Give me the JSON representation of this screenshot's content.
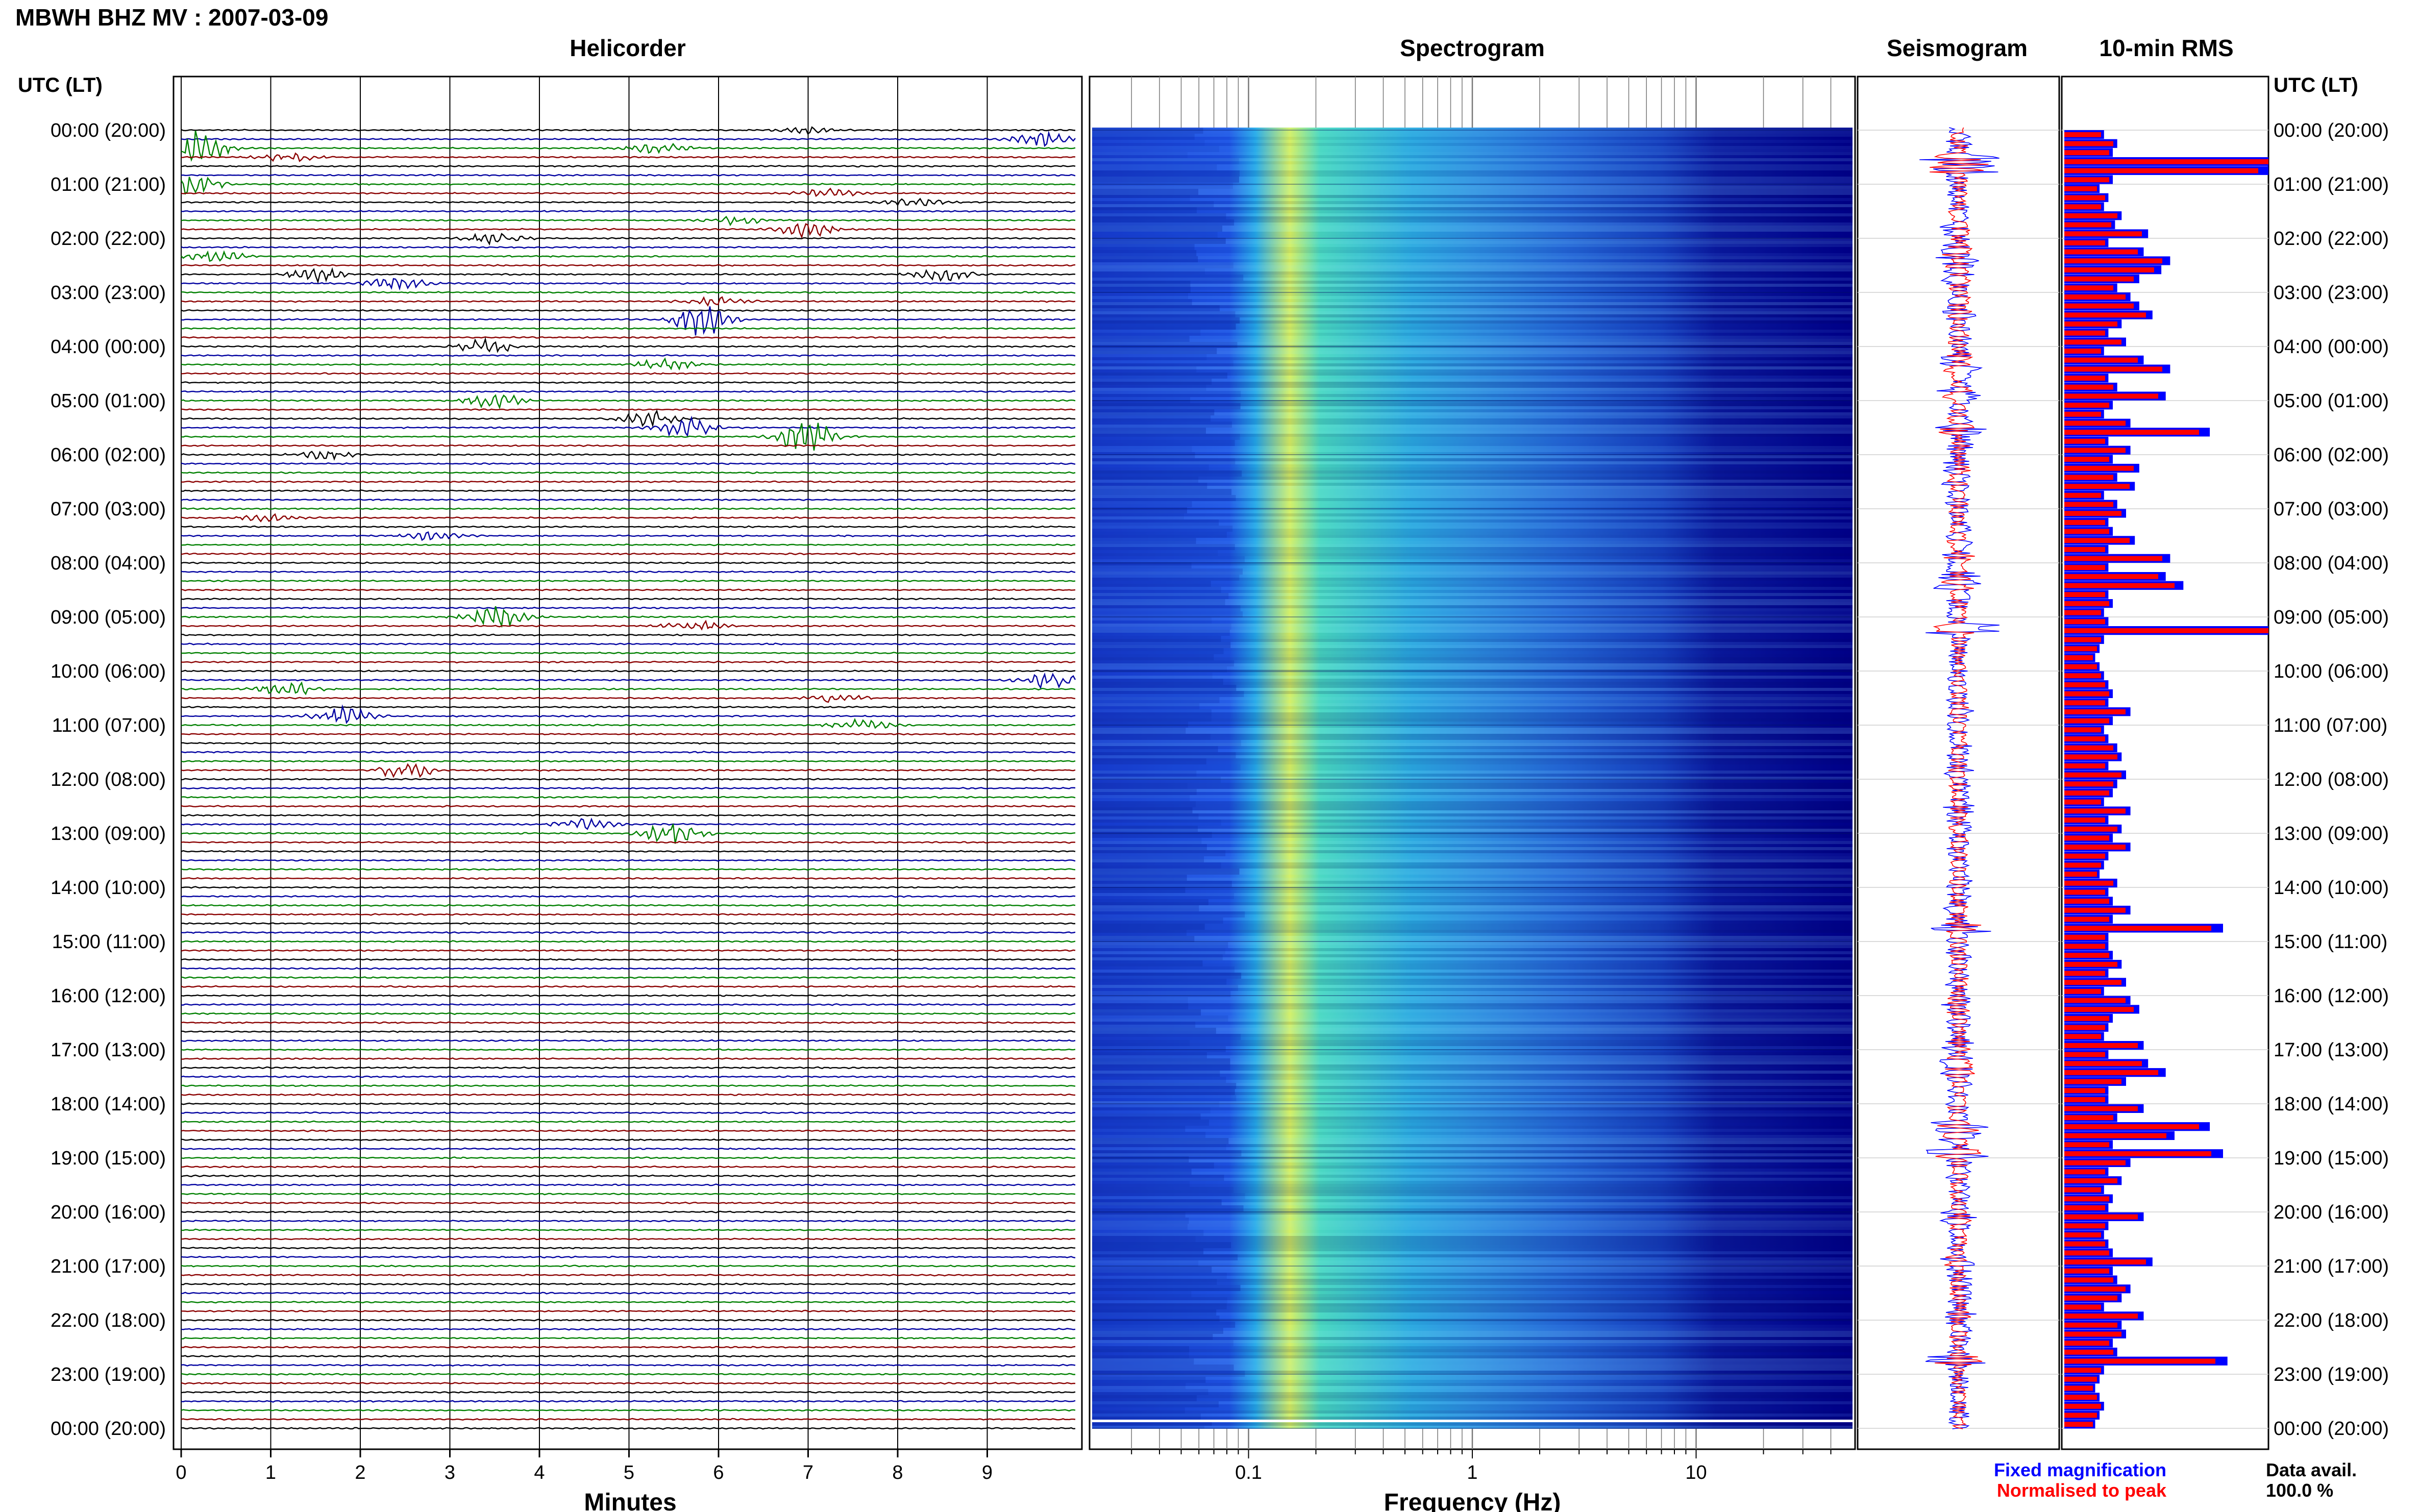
{
  "header": {
    "title": "MBWH BHZ MV : 2007-03-09"
  },
  "panels": {
    "helicorder": "Helicorder",
    "spectrogram": "Spectrogram",
    "seismogram": "Seismogram",
    "rms": "10-min RMS"
  },
  "axis": {
    "time_label": "UTC (LT)",
    "helicorder_xlabel": "Minutes",
    "spectrogram_xlabel": "Frequency (Hz)"
  },
  "legend": {
    "fixed": "Fixed magnification",
    "normalised": "Normalised to peak",
    "data_avail_label": "Data avail.",
    "data_avail_value": "100.0 %"
  },
  "colors": {
    "trace_cycle": [
      "#000000",
      "#0000a0",
      "#008000",
      "#8b0000"
    ],
    "fixed": "#0000ff",
    "normalised": "#ff0000",
    "spectro_low": "#00007f",
    "spectro_high": "#ffff55"
  },
  "chart_data": [
    {
      "type": "line",
      "name": "helicorder",
      "title": "Helicorder",
      "xlabel": "Minutes",
      "xlim": [
        0,
        10
      ],
      "xticks": [
        "0",
        "1",
        "2",
        "3",
        "4",
        "5",
        "6",
        "7",
        "8",
        "9"
      ],
      "time_ticks": [
        "00:00 (20:00)",
        "01:00 (21:00)",
        "02:00 (22:00)",
        "03:00 (23:00)",
        "04:00 (00:00)",
        "05:00 (01:00)",
        "06:00 (02:00)",
        "07:00 (03:00)",
        "08:00 (04:00)",
        "09:00 (05:00)",
        "10:00 (06:00)",
        "11:00 (07:00)",
        "12:00 (08:00)",
        "13:00 (09:00)",
        "14:00 (10:00)",
        "15:00 (11:00)",
        "16:00 (12:00)",
        "17:00 (13:00)",
        "18:00 (14:00)",
        "19:00 (15:00)",
        "20:00 (16:00)",
        "21:00 (17:00)",
        "22:00 (18:00)",
        "23:00 (19:00)",
        "00:00 (20:00)"
      ],
      "traces_per_hour": 6,
      "events": [
        {
          "row": 0,
          "minute": 7.0,
          "amp": 0.25
        },
        {
          "row": 1,
          "minute": 9.6,
          "amp": 0.5
        },
        {
          "row": 2,
          "minute": 0.15,
          "amp": 1.6
        },
        {
          "row": 2,
          "minute": 5.3,
          "amp": 0.4
        },
        {
          "row": 3,
          "minute": 1.2,
          "amp": 0.3
        },
        {
          "row": 6,
          "minute": 0.1,
          "amp": 0.8
        },
        {
          "row": 7,
          "minute": 7.2,
          "amp": 0.35
        },
        {
          "row": 8,
          "minute": 8.2,
          "amp": 0.3
        },
        {
          "row": 10,
          "minute": 6.2,
          "amp": 0.3
        },
        {
          "row": 11,
          "minute": 7.0,
          "amp": 0.6
        },
        {
          "row": 12,
          "minute": 3.5,
          "amp": 0.4
        },
        {
          "row": 14,
          "minute": 0.4,
          "amp": 0.4
        },
        {
          "row": 16,
          "minute": 1.5,
          "amp": 0.5
        },
        {
          "row": 16,
          "minute": 8.5,
          "amp": 0.5
        },
        {
          "row": 17,
          "minute": 2.4,
          "amp": 0.5
        },
        {
          "row": 19,
          "minute": 6.0,
          "amp": 0.35
        },
        {
          "row": 21,
          "minute": 5.8,
          "amp": 1.3
        },
        {
          "row": 24,
          "minute": 3.4,
          "amp": 0.6
        },
        {
          "row": 26,
          "minute": 5.4,
          "amp": 0.5
        },
        {
          "row": 30,
          "minute": 3.5,
          "amp": 0.6
        },
        {
          "row": 32,
          "minute": 5.2,
          "amp": 0.6
        },
        {
          "row": 33,
          "minute": 5.6,
          "amp": 0.8
        },
        {
          "row": 34,
          "minute": 7.0,
          "amp": 1.4
        },
        {
          "row": 36,
          "minute": 1.6,
          "amp": 0.3
        },
        {
          "row": 43,
          "minute": 1.0,
          "amp": 0.3
        },
        {
          "row": 45,
          "minute": 2.8,
          "amp": 0.3
        },
        {
          "row": 54,
          "minute": 3.5,
          "amp": 0.8
        },
        {
          "row": 55,
          "minute": 5.7,
          "amp": 0.4
        },
        {
          "row": 61,
          "minute": 9.7,
          "amp": 0.6
        },
        {
          "row": 62,
          "minute": 1.2,
          "amp": 0.5
        },
        {
          "row": 63,
          "minute": 7.3,
          "amp": 0.4
        },
        {
          "row": 65,
          "minute": 1.8,
          "amp": 0.7
        },
        {
          "row": 66,
          "minute": 7.6,
          "amp": 0.4
        },
        {
          "row": 71,
          "minute": 2.5,
          "amp": 0.7
        },
        {
          "row": 77,
          "minute": 4.5,
          "amp": 0.4
        },
        {
          "row": 78,
          "minute": 5.5,
          "amp": 0.9
        }
      ]
    },
    {
      "type": "heatmap",
      "name": "spectrogram",
      "title": "Spectrogram",
      "xlabel": "Frequency (Hz)",
      "xscale": "log",
      "xlim": [
        0.02,
        50
      ],
      "xticks": [
        "0.1",
        "1",
        "10"
      ],
      "peak_band_hz": [
        0.15,
        0.35
      ],
      "secondary_band_hz": [
        1.5,
        3
      ]
    },
    {
      "type": "line",
      "name": "seismogram",
      "title": "Seismogram",
      "series": [
        {
          "name": "Fixed magnification",
          "color": "#0000ff"
        },
        {
          "name": "Normalised to peak",
          "color": "#ff0000"
        }
      ]
    },
    {
      "type": "bar",
      "name": "rms",
      "title": "10-min RMS",
      "orientation": "horizontal",
      "series_names": [
        "Fixed magnification",
        "Normalised to peak"
      ],
      "values": [
        0.18,
        0.24,
        0.22,
        1.0,
        0.95,
        0.22,
        0.16,
        0.2,
        0.18,
        0.26,
        0.23,
        0.38,
        0.2,
        0.36,
        0.48,
        0.44,
        0.34,
        0.24,
        0.3,
        0.34,
        0.4,
        0.26,
        0.2,
        0.28,
        0.18,
        0.36,
        0.48,
        0.2,
        0.24,
        0.46,
        0.22,
        0.18,
        0.3,
        0.66,
        0.2,
        0.3,
        0.22,
        0.34,
        0.24,
        0.32,
        0.18,
        0.24,
        0.28,
        0.2,
        0.22,
        0.32,
        0.2,
        0.48,
        0.2,
        0.46,
        0.54,
        0.2,
        0.22,
        0.18,
        0.2,
        1.0,
        0.18,
        0.16,
        0.14,
        0.16,
        0.18,
        0.2,
        0.22,
        0.2,
        0.3,
        0.22,
        0.18,
        0.2,
        0.24,
        0.26,
        0.2,
        0.28,
        0.24,
        0.22,
        0.18,
        0.3,
        0.2,
        0.26,
        0.22,
        0.3,
        0.2,
        0.18,
        0.16,
        0.24,
        0.2,
        0.22,
        0.3,
        0.22,
        0.72,
        0.2,
        0.2,
        0.22,
        0.26,
        0.2,
        0.28,
        0.18,
        0.3,
        0.34,
        0.22,
        0.2,
        0.18,
        0.36,
        0.2,
        0.38,
        0.46,
        0.28,
        0.2,
        0.2,
        0.36,
        0.24,
        0.66,
        0.5,
        0.22,
        0.72,
        0.3,
        0.2,
        0.26,
        0.18,
        0.22,
        0.2,
        0.36,
        0.2,
        0.18,
        0.2,
        0.22,
        0.4,
        0.22,
        0.24,
        0.3,
        0.26,
        0.18,
        0.36,
        0.26,
        0.28,
        0.22,
        0.24,
        0.74,
        0.18,
        0.16,
        0.14,
        0.16,
        0.18,
        0.16,
        0.14
      ],
      "xlim": [
        0,
        1
      ]
    }
  ]
}
